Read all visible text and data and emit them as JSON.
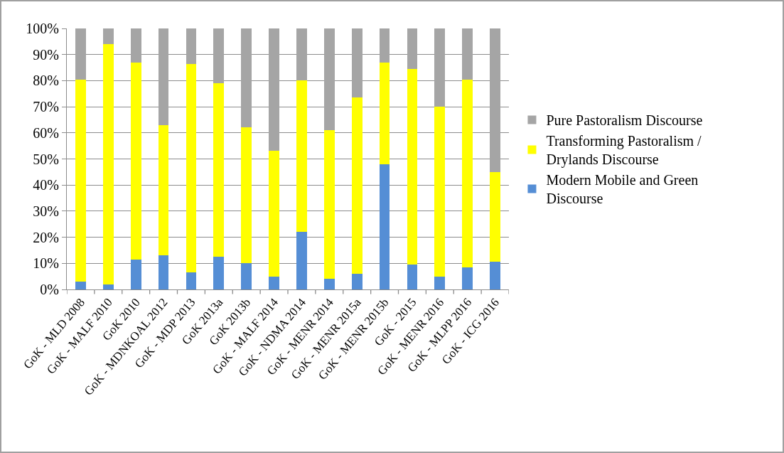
{
  "chart_data": {
    "type": "bar",
    "stacked": true,
    "categories": [
      "GoK - MLD 2008",
      "GoK - MALF 2010",
      "GoK 2010",
      "GoK - MDNKOAL 2012",
      "GoK - MDP 2013",
      "GoK 2013a",
      "GoK 2013b",
      "GoK - MALF 2014",
      "GoK - NDMA 2014",
      "GoK - MENR 2014",
      "GoK - MENR 2015a",
      "GoK - MENR 2015b",
      "GoK - 2015",
      "GoK - MENR 2016",
      "GoK - MLPP 2016",
      "GoK - ICG 2016"
    ],
    "series": [
      {
        "name": "Modern Mobile and Green Discourse",
        "color": "#558ed5",
        "values": [
          3,
          2,
          11.5,
          13,
          6.5,
          12.5,
          10,
          5,
          22,
          4,
          6,
          48,
          9.5,
          5,
          8.5,
          10.5
        ]
      },
      {
        "name": "Transforming Pastoralism / Drylands Discourse",
        "color": "#ffff00",
        "values": [
          77.5,
          92,
          75.5,
          50,
          80,
          66.5,
          52,
          48,
          58,
          57,
          67.5,
          39,
          75,
          65,
          72,
          34.5
        ]
      },
      {
        "name": "Pure Pastoralism Discourse",
        "color": "#a5a5a5",
        "values": [
          19.5,
          6,
          13,
          37,
          13.5,
          21,
          38,
          47,
          20,
          39,
          26.5,
          13,
          15.5,
          30,
          19.5,
          55
        ]
      }
    ],
    "ylim": [
      0,
      100
    ],
    "yticks": [
      {
        "value": 0,
        "label": "0%"
      },
      {
        "value": 10,
        "label": "10%"
      },
      {
        "value": 20,
        "label": "20%"
      },
      {
        "value": 30,
        "label": "30%"
      },
      {
        "value": 40,
        "label": "40%"
      },
      {
        "value": 50,
        "label": "50%"
      },
      {
        "value": 60,
        "label": "60%"
      },
      {
        "value": 70,
        "label": "70%"
      },
      {
        "value": 80,
        "label": "80%"
      },
      {
        "value": 90,
        "label": "90%"
      },
      {
        "value": 100,
        "label": "100%"
      }
    ],
    "grid": "y",
    "legend": "right"
  }
}
